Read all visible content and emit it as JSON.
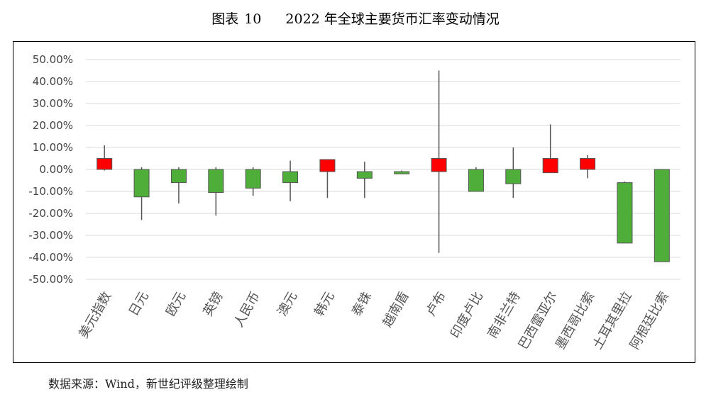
{
  "figure": {
    "label": "图表",
    "number": "10",
    "title": "2022 年全球主要货币汇率变动情况"
  },
  "source_note": "数据来源：Wind，新世纪评级整理绘制",
  "chart_data": {
    "type": "candlestick",
    "ylim": [
      -50,
      50
    ],
    "ytick_step": 10,
    "ytick_format": "percent-2dp",
    "grid": true,
    "legend": "none",
    "colors": {
      "up": "#ff0000",
      "down": "#4fad3a",
      "outline": "#555555",
      "grid": "#d9d9d9"
    },
    "categories": [
      "美元指数",
      "日元",
      "欧元",
      "英镑",
      "人民币",
      "澳元",
      "韩元",
      "泰铢",
      "越南盾",
      "卢布",
      "印度卢比",
      "南非兰特",
      "巴西雷亚尔",
      "墨西哥比索",
      "土耳其里拉",
      "阿根廷比索"
    ],
    "open": [
      0.0,
      0.0,
      0.0,
      0.0,
      0.0,
      -1.0,
      -1.0,
      -1.0,
      -1.0,
      -1.0,
      0.0,
      0.0,
      -1.5,
      0.0,
      -6.0,
      0.0
    ],
    "close": [
      5.0,
      -12.5,
      -6.0,
      -10.5,
      -8.5,
      -6.0,
      4.5,
      -4.0,
      -2.0,
      5.0,
      -10.0,
      -6.5,
      5.0,
      5.0,
      -33.5,
      -42.0
    ],
    "high": [
      11.0,
      1.0,
      1.0,
      1.0,
      1.0,
      4.0,
      4.5,
      3.5,
      -0.5,
      45.0,
      1.0,
      10.0,
      20.5,
      6.5,
      -5.5,
      0.0
    ],
    "low": [
      -0.5,
      -23.0,
      -15.5,
      -21.0,
      -12.0,
      -14.5,
      -13.0,
      -13.0,
      -2.0,
      -38.0,
      -10.0,
      -13.0,
      -1.5,
      -4.0,
      -33.5,
      -42.0
    ]
  }
}
